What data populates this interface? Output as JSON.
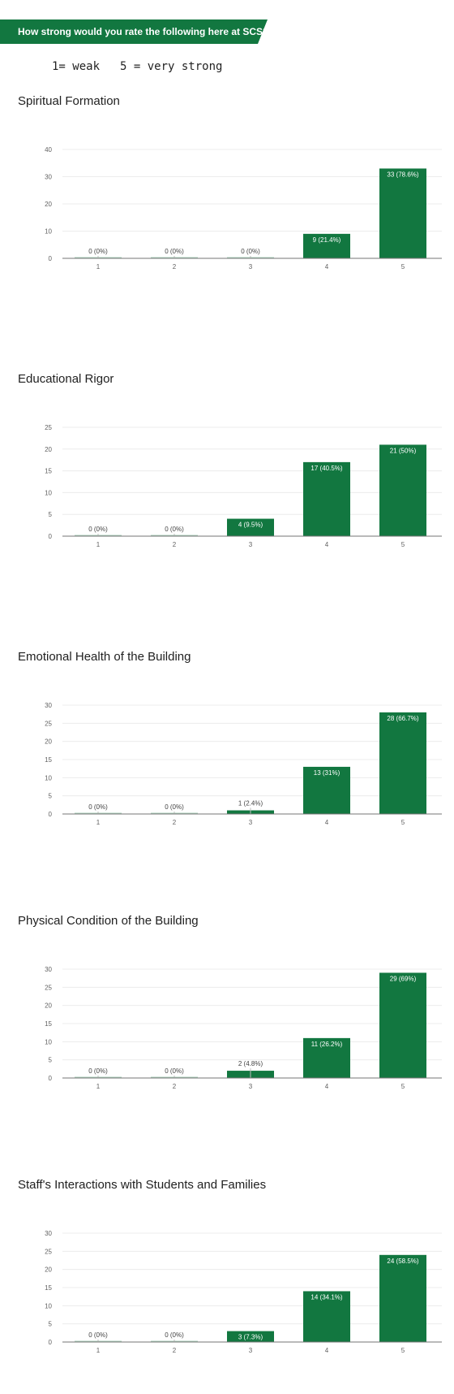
{
  "header": {
    "question": "How strong would you rate the following here at SCS?:",
    "scale_low": "1= weak",
    "scale_high": "5 = very strong",
    "accent_color": "#127740"
  },
  "chart_data": [
    {
      "type": "bar",
      "title": "Spiritual Formation",
      "categories": [
        "1",
        "2",
        "3",
        "4",
        "5"
      ],
      "values": [
        0,
        0,
        0,
        9,
        33
      ],
      "labels": [
        "0 (0%)",
        "0 (0%)",
        "0 (0%)",
        "9 (21.4%)",
        "33 (78.6%)"
      ],
      "yticks": [
        0,
        10,
        20,
        30,
        40
      ],
      "ylim": [
        0,
        40
      ],
      "grid": true,
      "color": "#127740"
    },
    {
      "type": "bar",
      "title": "Educational Rigor",
      "categories": [
        "1",
        "2",
        "3",
        "4",
        "5"
      ],
      "values": [
        0,
        0,
        4,
        17,
        21
      ],
      "labels": [
        "0 (0%)",
        "0 (0%)",
        "4 (9.5%)",
        "17 (40.5%)",
        "21 (50%)"
      ],
      "yticks": [
        0,
        5,
        10,
        15,
        20,
        25
      ],
      "ylim": [
        0,
        25
      ],
      "grid": true,
      "color": "#127740"
    },
    {
      "type": "bar",
      "title": "Emotional Health of the Building",
      "categories": [
        "1",
        "2",
        "3",
        "4",
        "5"
      ],
      "values": [
        0,
        0,
        1,
        13,
        28
      ],
      "labels": [
        "0 (0%)",
        "0 (0%)",
        "1 (2.4%)",
        "13 (31%)",
        "28 (66.7%)"
      ],
      "yticks": [
        0,
        5,
        10,
        15,
        20,
        25,
        30
      ],
      "ylim": [
        0,
        30
      ],
      "grid": true,
      "color": "#127740"
    },
    {
      "type": "bar",
      "title": "Physical Condition of the Building",
      "categories": [
        "1",
        "2",
        "3",
        "4",
        "5"
      ],
      "values": [
        0,
        0,
        2,
        11,
        29
      ],
      "labels": [
        "0 (0%)",
        "0 (0%)",
        "2 (4.8%)",
        "11 (26.2%)",
        "29 (69%)"
      ],
      "yticks": [
        0,
        5,
        10,
        15,
        20,
        25,
        30
      ],
      "ylim": [
        0,
        30
      ],
      "grid": true,
      "color": "#127740"
    },
    {
      "type": "bar",
      "title": "Staff's Interactions with Students and Families",
      "categories": [
        "1",
        "2",
        "3",
        "4",
        "5"
      ],
      "values": [
        0,
        0,
        3,
        14,
        24
      ],
      "labels": [
        "0 (0%)",
        "0 (0%)",
        "3 (7.3%)",
        "14 (34.1%)",
        "24 (58.5%)"
      ],
      "yticks": [
        0,
        5,
        10,
        15,
        20,
        25,
        30
      ],
      "ylim": [
        0,
        30
      ],
      "grid": true,
      "color": "#127740"
    }
  ]
}
